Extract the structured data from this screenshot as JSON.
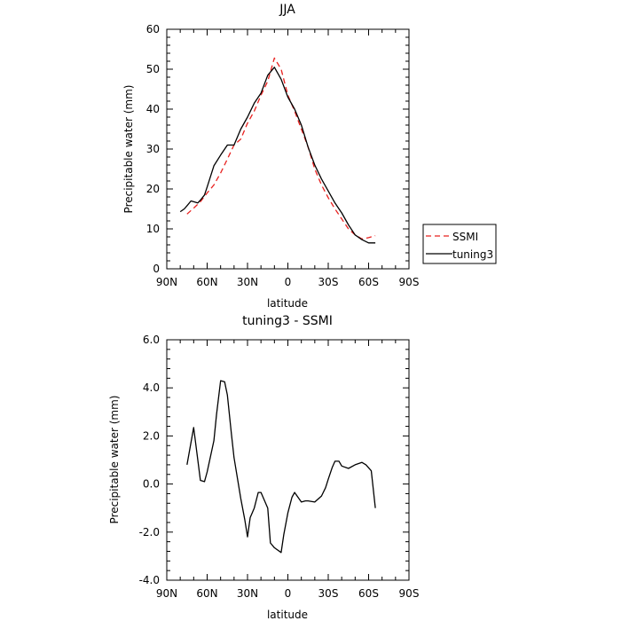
{
  "chart_data": [
    {
      "type": "line",
      "title": "JJA",
      "xlabel": "latitude",
      "ylabel": "Precipitable water (mm)",
      "xlim": [
        90,
        -90
      ],
      "ylim": [
        0,
        60
      ],
      "x_ticks": [
        90,
        60,
        30,
        0,
        -30,
        -60,
        -90
      ],
      "x_tick_labels": [
        "90N",
        "60N",
        "30N",
        "0",
        "30S",
        "60S",
        "90S"
      ],
      "y_ticks": [
        0,
        10,
        20,
        30,
        40,
        50,
        60
      ],
      "y_tick_labels": [
        "0",
        "10",
        "20",
        "30",
        "40",
        "50",
        "60"
      ],
      "legend_position": "right",
      "series": [
        {
          "name": "SSMI",
          "color": "#e8201e",
          "dash": "dashed",
          "x": [
            75,
            70,
            65,
            60,
            55,
            50,
            45,
            40,
            35,
            30,
            25,
            20,
            15,
            10,
            5,
            0,
            -5,
            -10,
            -15,
            -20,
            -25,
            -30,
            -35,
            -40,
            -45,
            -50,
            -55,
            -60,
            -65
          ],
          "y": [
            13.7,
            15.2,
            16.8,
            19.0,
            21.0,
            24.0,
            27.5,
            31.0,
            32.5,
            36.5,
            39.5,
            43.5,
            47.0,
            52.8,
            50.0,
            43.5,
            39.5,
            35.0,
            30.5,
            25.0,
            21.0,
            17.8,
            15.0,
            12.5,
            10.0,
            8.5,
            7.5,
            7.8,
            8.3
          ]
        },
        {
          "name": "tuning3",
          "color": "#000000",
          "dash": "solid",
          "x": [
            80,
            77,
            75,
            72,
            70,
            67,
            65,
            62,
            60,
            55,
            50,
            45,
            40,
            35,
            30,
            25,
            20,
            15,
            10,
            5,
            0,
            -5,
            -10,
            -15,
            -20,
            -25,
            -30,
            -35,
            -40,
            -45,
            -50,
            -55,
            -60,
            -65
          ],
          "y": [
            14.3,
            15.0,
            15.8,
            17.0,
            16.8,
            16.5,
            17.2,
            18.5,
            20.5,
            25.8,
            28.5,
            31.0,
            31.0,
            35.0,
            38.0,
            41.5,
            44.0,
            48.5,
            50.5,
            47.5,
            43.0,
            40.0,
            36.0,
            30.5,
            26.0,
            22.5,
            19.5,
            16.5,
            14.0,
            11.0,
            8.5,
            7.3,
            6.5,
            6.5
          ]
        }
      ]
    },
    {
      "type": "line",
      "title": "tuning3 - SSMI",
      "xlabel": "latitude",
      "ylabel": "Precipitable water (mm)",
      "xlim": [
        90,
        -90
      ],
      "ylim": [
        -4,
        6
      ],
      "x_ticks": [
        90,
        60,
        30,
        0,
        -30,
        -60,
        -90
      ],
      "x_tick_labels": [
        "90N",
        "60N",
        "30N",
        "0",
        "30S",
        "60S",
        "90S"
      ],
      "y_ticks": [
        -4,
        -2,
        0,
        2,
        4,
        6
      ],
      "y_tick_labels": [
        "-4.0",
        "-2.0",
        "0.0",
        "2.0",
        "4.0",
        "6.0"
      ],
      "series": [
        {
          "color": "#000000",
          "dash": "solid",
          "x": [
            75,
            70,
            65,
            62,
            60,
            55,
            53,
            50,
            47,
            45,
            42,
            40,
            35,
            32,
            30,
            28,
            25,
            22,
            20,
            15,
            13,
            10,
            5,
            3,
            0,
            -3,
            -5,
            -10,
            -13,
            -15,
            -20,
            -25,
            -28,
            -30,
            -33,
            -35,
            -38,
            -40,
            -45,
            -50,
            -55,
            -58,
            -62,
            -65
          ],
          "y": [
            0.8,
            2.35,
            0.15,
            0.1,
            0.5,
            1.8,
            2.9,
            4.3,
            4.25,
            3.7,
            2.1,
            1.1,
            -0.6,
            -1.5,
            -2.2,
            -1.4,
            -1.0,
            -0.35,
            -0.35,
            -1.0,
            -2.45,
            -2.65,
            -2.85,
            -2.1,
            -1.2,
            -0.55,
            -0.35,
            -0.75,
            -0.7,
            -0.7,
            -0.75,
            -0.5,
            -0.15,
            0.2,
            0.7,
            0.95,
            0.95,
            0.75,
            0.65,
            0.8,
            0.9,
            0.8,
            0.55,
            -1.0
          ]
        }
      ]
    }
  ]
}
